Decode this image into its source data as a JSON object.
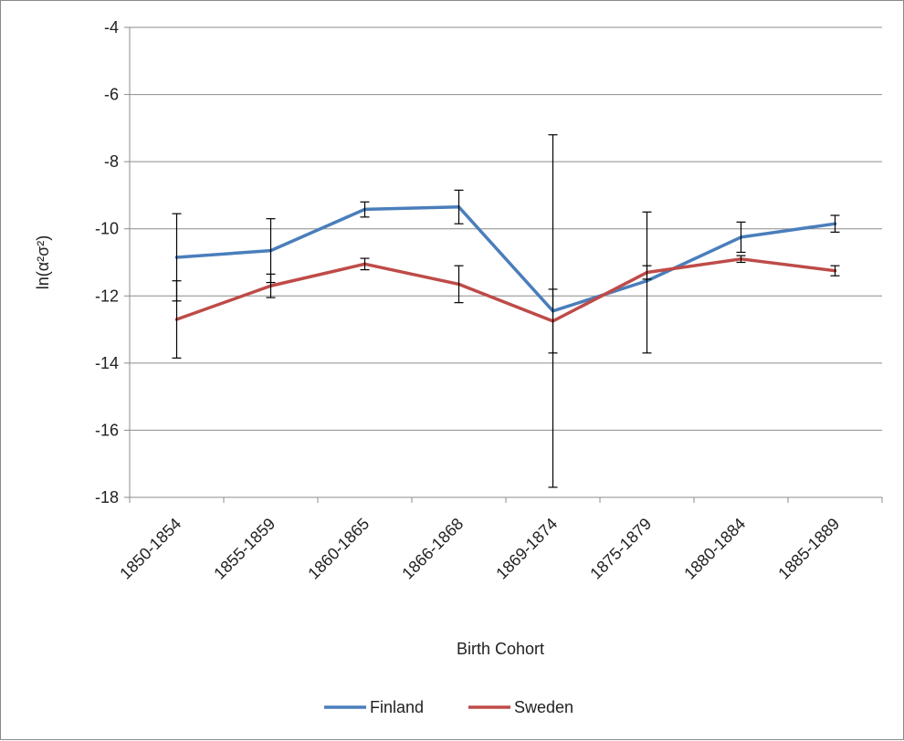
{
  "chart_data": {
    "type": "line",
    "categories": [
      "1850-1854",
      "1855-1859",
      "1860-1865",
      "1866-1868",
      "1869-1874",
      "1875-1879",
      "1880-1884",
      "1885-1889"
    ],
    "series": [
      {
        "name": "Finland",
        "color": "#4a7ebb",
        "values": [
          -10.85,
          -10.65,
          -9.42,
          -9.35,
          -12.45,
          -11.55,
          -10.25,
          -9.85
        ],
        "err_high": [
          -9.55,
          -9.7,
          -9.2,
          -8.85,
          -7.2,
          -9.5,
          -9.8,
          -9.6
        ],
        "err_low": [
          -12.15,
          -11.6,
          -9.65,
          -9.85,
          -17.7,
          -13.7,
          -10.7,
          -10.1
        ]
      },
      {
        "name": "Sweden",
        "color": "#be4b48",
        "values": [
          -12.7,
          -11.7,
          -11.05,
          -11.65,
          -12.75,
          -11.3,
          -10.9,
          -11.25
        ],
        "err_high": [
          -11.55,
          -11.35,
          -10.88,
          -11.1,
          -11.8,
          -11.1,
          -10.8,
          -11.1
        ],
        "err_low": [
          -13.85,
          -12.05,
          -11.22,
          -12.2,
          -13.7,
          -11.5,
          -11.0,
          -11.4
        ]
      }
    ],
    "xlabel": "Birth Cohort",
    "ylabel": "ln(α²σ²)",
    "ylim": [
      -18,
      -4
    ],
    "yticks": [
      -4,
      -6,
      -8,
      -10,
      -12,
      -14,
      -16,
      -18
    ],
    "grid": true,
    "legend_position": "bottom"
  }
}
